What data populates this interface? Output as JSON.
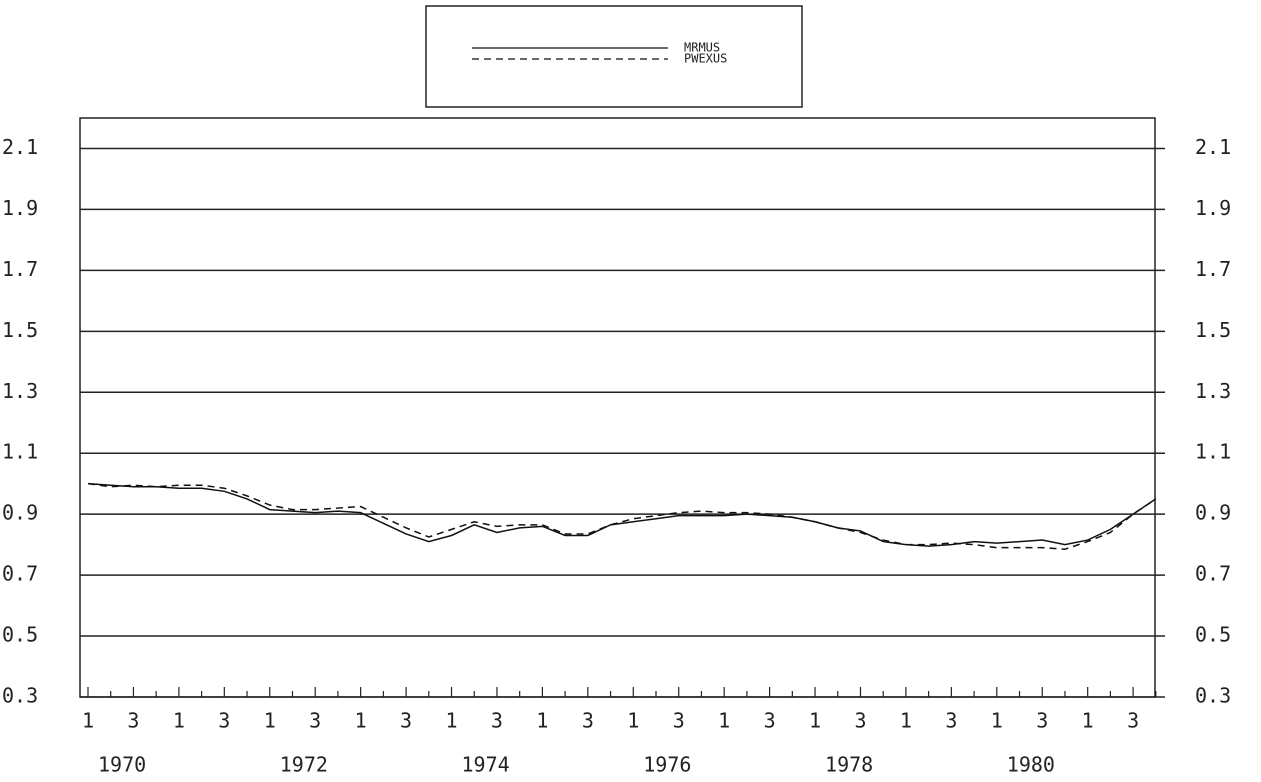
{
  "chart_data": {
    "type": "line",
    "categories": [
      "1",
      null,
      "3",
      null,
      "1",
      null,
      "3",
      null,
      "1",
      null,
      "3",
      null,
      "1",
      null,
      "3",
      null,
      "1",
      null,
      "3",
      null,
      "1",
      null,
      "3",
      null,
      "1",
      null,
      "3",
      null,
      "1",
      null,
      "3",
      null,
      "1",
      null,
      "3",
      null,
      "1",
      null,
      "3",
      null,
      "1",
      null,
      "3",
      null,
      "1",
      null,
      "3",
      null
    ],
    "x_group_labels": [
      "1970",
      "1972",
      "1974",
      "1976",
      "1978",
      "1980"
    ],
    "series": [
      {
        "name": "MRMUS",
        "color": "#111111",
        "dash": false,
        "values": [
          1.0,
          0.995,
          0.99,
          0.99,
          0.985,
          0.985,
          0.975,
          0.95,
          0.915,
          0.91,
          0.905,
          0.91,
          0.905,
          0.87,
          0.835,
          0.81,
          0.83,
          0.865,
          0.84,
          0.855,
          0.86,
          0.83,
          0.83,
          0.865,
          0.875,
          0.885,
          0.895,
          0.895,
          0.895,
          0.9,
          0.895,
          0.89,
          0.875,
          0.855,
          0.845,
          0.81,
          0.8,
          0.795,
          0.8,
          0.81,
          0.805,
          0.81,
          0.815,
          0.8,
          0.815,
          0.85,
          0.9,
          0.95
        ]
      },
      {
        "name": "PWEXUS",
        "color": "#111111",
        "dash": true,
        "values": [
          1.0,
          0.99,
          0.995,
          0.99,
          0.995,
          0.995,
          0.985,
          0.96,
          0.93,
          0.915,
          0.915,
          0.92,
          0.925,
          0.89,
          0.855,
          0.825,
          0.85,
          0.875,
          0.86,
          0.865,
          0.865,
          0.835,
          0.835,
          0.865,
          0.885,
          0.895,
          0.905,
          0.91,
          0.905,
          0.905,
          0.9,
          0.89,
          0.875,
          0.855,
          0.84,
          0.815,
          0.8,
          0.8,
          0.805,
          0.8,
          0.79,
          0.79,
          0.79,
          0.785,
          0.81,
          0.84,
          0.9,
          0.95
        ]
      }
    ],
    "ylim": [
      0.3,
      2.2
    ],
    "yticks": [
      0.3,
      0.5,
      0.7,
      0.9,
      1.1,
      1.3,
      1.5,
      1.7,
      1.9,
      2.1
    ],
    "grid": true,
    "legend": "top"
  }
}
